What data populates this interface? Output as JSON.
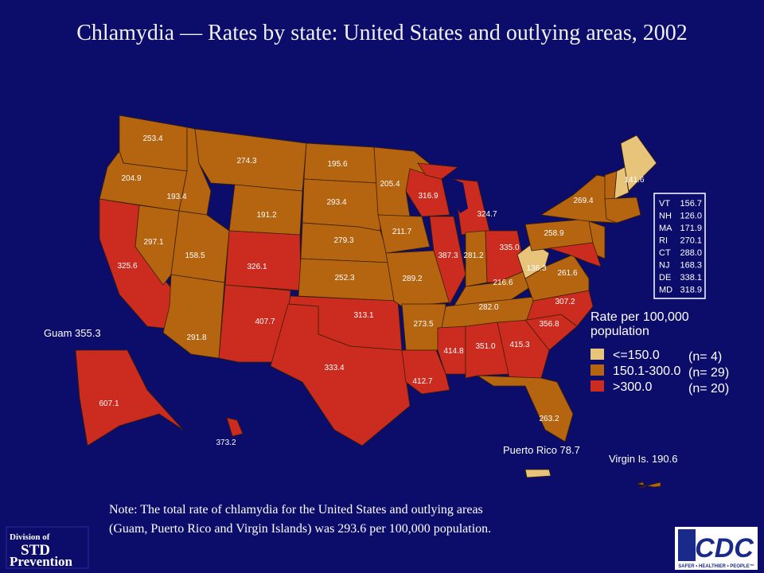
{
  "title": "Chlamydia — Rates by state: United States and outlying areas, 2002",
  "regions": [
    {
      "label": "253.4",
      "class": 1
    },
    {
      "label": "204.9",
      "class": 1
    },
    {
      "label": "325.6",
      "class": 2
    },
    {
      "label": "297.1",
      "class": 1
    },
    {
      "label": "193.4",
      "class": 1
    },
    {
      "label": "274.3",
      "class": 1
    },
    {
      "label": "191.2",
      "class": 1
    },
    {
      "label": "158.5",
      "class": 1
    },
    {
      "label": "291.8",
      "class": 1
    },
    {
      "label": "326.1",
      "class": 2
    },
    {
      "label": "407.7",
      "class": 2
    },
    {
      "label": "195.6",
      "class": 1
    },
    {
      "label": "293.4",
      "class": 1
    },
    {
      "label": "279.3",
      "class": 1
    },
    {
      "label": "252.3",
      "class": 1
    },
    {
      "label": "313.1",
      "class": 2
    },
    {
      "label": "333.4",
      "class": 2
    },
    {
      "label": "205.4",
      "class": 1
    },
    {
      "label": "211.7",
      "class": 1
    },
    {
      "label": "289.2",
      "class": 1
    },
    {
      "label": "273.5",
      "class": 1
    },
    {
      "label": "412.7",
      "class": 2
    },
    {
      "label": "316.9",
      "class": 2
    },
    {
      "label": "387.3",
      "class": 2
    },
    {
      "label": "324.7",
      "class": 2
    },
    {
      "label": "281.2",
      "class": 1
    },
    {
      "label": "335.0",
      "class": 2
    },
    {
      "label": "216.6",
      "class": 1
    },
    {
      "label": "282.0",
      "class": 1
    },
    {
      "label": "414.8",
      "class": 2
    },
    {
      "label": "351.0",
      "class": 2
    },
    {
      "label": "415.3",
      "class": 2
    },
    {
      "label": "263.2",
      "class": 1
    },
    {
      "label": "356.8",
      "class": 2
    },
    {
      "label": "307.2",
      "class": 2
    },
    {
      "label": "261.6",
      "class": 1
    },
    {
      "label": "136.3",
      "class": 0
    },
    {
      "label": "258.9",
      "class": 1
    },
    {
      "label": "269.4",
      "class": 1
    },
    {
      "label": "141.6",
      "class": 0
    },
    {
      "label": "607.1",
      "class": 2
    },
    {
      "label": "373.2",
      "class": 2
    },
    {
      "class": 2
    },
    {
      "class": 1
    },
    {
      "class": 1
    },
    {
      "class": 0
    },
    {
      "class": 1
    },
    {
      "class": 2
    },
    {
      "class": 0
    },
    {
      "class": 1
    }
  ],
  "territory_labels": [
    "Guam 355.3",
    "Puerto Rico 78.7",
    "Virgin Is. 190.6"
  ],
  "inset_table": {
    "rows": [
      [
        "VT",
        "156.7"
      ],
      [
        "NH",
        "126.0"
      ],
      [
        "MA",
        "171.9"
      ],
      [
        "RI",
        "270.1"
      ],
      [
        "CT",
        "288.0"
      ],
      [
        "NJ",
        "168.3"
      ],
      [
        "DE",
        "338.1"
      ],
      [
        "MD",
        "318.9"
      ]
    ]
  },
  "legend": {
    "title_lines": [
      "Rate per 100,000",
      "population"
    ],
    "items": [
      {
        "label": "<=150.0",
        "count": "(n= 4)",
        "color": "#e8c47a"
      },
      {
        "label": "150.1-300.0",
        "count": "(n= 29)",
        "color": "#b5640f"
      },
      {
        "label": ">300.0",
        "count": "(n= 20)",
        "color": "#cc2b1f"
      }
    ]
  },
  "note": [
    "Note: The total rate of chlamydia for the United States and outlying areas",
    "(Guam, Puerto Rico and Virgin Islands) was 293.6 per 100,000 population."
  ],
  "logos": {
    "std": [
      "Division of",
      "STD",
      "Prevention"
    ],
    "cdc": [
      "CDC",
      "SAFER • HEALTHIER • PEOPLE™"
    ]
  }
}
